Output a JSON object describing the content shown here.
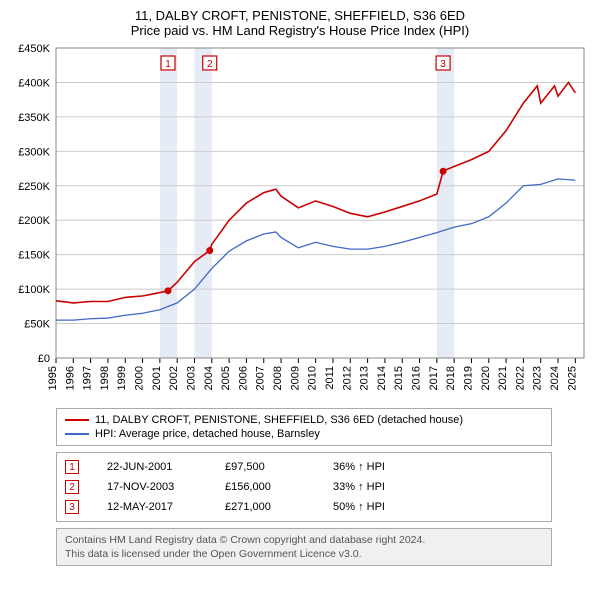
{
  "title": "11, DALBY CROFT, PENISTONE, SHEFFIELD, S36 6ED",
  "subtitle": "Price paid vs. HM Land Registry's House Price Index (HPI)",
  "chart": {
    "type": "line",
    "background_color": "#ffffff",
    "grid_color": "#cccccc",
    "band_color": "#e6ecf5",
    "x_years": [
      1995,
      1996,
      1997,
      1998,
      1999,
      2000,
      2001,
      2002,
      2003,
      2004,
      2005,
      2006,
      2007,
      2008,
      2009,
      2010,
      2011,
      2012,
      2013,
      2014,
      2015,
      2016,
      2017,
      2018,
      2019,
      2020,
      2021,
      2022,
      2023,
      2024,
      2025
    ],
    "xlim": [
      1995,
      2025.5
    ],
    "ylim": [
      0,
      450000
    ],
    "ytick_step": 50000,
    "ytick_labels": [
      "£0",
      "£50K",
      "£100K",
      "£150K",
      "£200K",
      "£250K",
      "£300K",
      "£350K",
      "£400K",
      "£450K"
    ],
    "label_fontsize": 11,
    "axis_color": "#000000",
    "bands": [
      [
        2001,
        2002
      ],
      [
        2003,
        2004
      ],
      [
        2017,
        2018
      ]
    ],
    "series": [
      {
        "name": "property",
        "label": "11, DALBY CROFT, PENISTONE, SHEFFIELD, S36 6ED (detached house)",
        "color": "#cc0000",
        "line_width": 1.6,
        "points": [
          [
            1995,
            83000
          ],
          [
            1996,
            80000
          ],
          [
            1997,
            82000
          ],
          [
            1998,
            82000
          ],
          [
            1999,
            88000
          ],
          [
            2000,
            90000
          ],
          [
            2001,
            95000
          ],
          [
            2001.47,
            97500
          ],
          [
            2002,
            110000
          ],
          [
            2003,
            140000
          ],
          [
            2003.88,
            156000
          ],
          [
            2004,
            165000
          ],
          [
            2005,
            200000
          ],
          [
            2006,
            225000
          ],
          [
            2007,
            240000
          ],
          [
            2007.7,
            245000
          ],
          [
            2008,
            235000
          ],
          [
            2009,
            218000
          ],
          [
            2010,
            228000
          ],
          [
            2011,
            220000
          ],
          [
            2012,
            210000
          ],
          [
            2013,
            205000
          ],
          [
            2014,
            212000
          ],
          [
            2015,
            220000
          ],
          [
            2016,
            228000
          ],
          [
            2017,
            238000
          ],
          [
            2017.36,
            271000
          ],
          [
            2017.4,
            272000
          ],
          [
            2018,
            278000
          ],
          [
            2019,
            288000
          ],
          [
            2020,
            300000
          ],
          [
            2021,
            330000
          ],
          [
            2022,
            370000
          ],
          [
            2022.8,
            395000
          ],
          [
            2023,
            370000
          ],
          [
            2023.8,
            395000
          ],
          [
            2024,
            380000
          ],
          [
            2024.6,
            400000
          ],
          [
            2025,
            385000
          ]
        ]
      },
      {
        "name": "hpi",
        "label": "HPI: Average price, detached house, Barnsley",
        "color": "#4169c8",
        "line_width": 1.3,
        "points": [
          [
            1995,
            55000
          ],
          [
            1996,
            55000
          ],
          [
            1997,
            57000
          ],
          [
            1998,
            58000
          ],
          [
            1999,
            62000
          ],
          [
            2000,
            65000
          ],
          [
            2001,
            70000
          ],
          [
            2002,
            80000
          ],
          [
            2003,
            100000
          ],
          [
            2004,
            130000
          ],
          [
            2005,
            155000
          ],
          [
            2006,
            170000
          ],
          [
            2007,
            180000
          ],
          [
            2007.7,
            183000
          ],
          [
            2008,
            175000
          ],
          [
            2009,
            160000
          ],
          [
            2010,
            168000
          ],
          [
            2011,
            162000
          ],
          [
            2012,
            158000
          ],
          [
            2013,
            158000
          ],
          [
            2014,
            162000
          ],
          [
            2015,
            168000
          ],
          [
            2016,
            175000
          ],
          [
            2017,
            182000
          ],
          [
            2018,
            190000
          ],
          [
            2019,
            195000
          ],
          [
            2020,
            205000
          ],
          [
            2021,
            225000
          ],
          [
            2022,
            250000
          ],
          [
            2023,
            252000
          ],
          [
            2024,
            260000
          ],
          [
            2025,
            258000
          ]
        ]
      }
    ],
    "sale_markers": [
      {
        "n": "1",
        "year": 2001.47,
        "price": 97500,
        "box_y": 52000
      },
      {
        "n": "2",
        "year": 2003.88,
        "price": 156000,
        "box_y": 52000
      },
      {
        "n": "3",
        "year": 2017.36,
        "price": 271000,
        "box_y": 52000
      }
    ]
  },
  "legend": {
    "items": [
      {
        "color": "#cc0000",
        "label": "11, DALBY CROFT, PENISTONE, SHEFFIELD, S36 6ED (detached house)"
      },
      {
        "color": "#4169c8",
        "label": "HPI: Average price, detached house, Barnsley"
      }
    ]
  },
  "sales": [
    {
      "n": "1",
      "date": "22-JUN-2001",
      "price": "£97,500",
      "delta": "36% ↑ HPI"
    },
    {
      "n": "2",
      "date": "17-NOV-2003",
      "price": "£156,000",
      "delta": "33% ↑ HPI"
    },
    {
      "n": "3",
      "date": "12-MAY-2017",
      "price": "£271,000",
      "delta": "50% ↑ HPI"
    }
  ],
  "footer": {
    "line1": "Contains HM Land Registry data © Crown copyright and database right 2024.",
    "line2": "This data is licensed under the Open Government Licence v3.0."
  }
}
